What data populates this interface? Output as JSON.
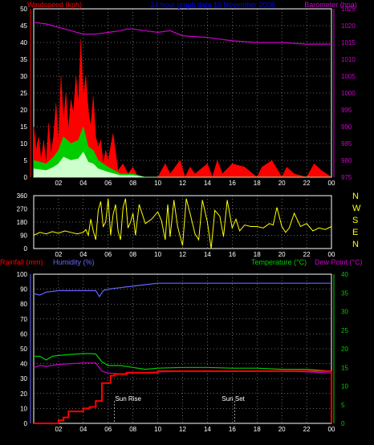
{
  "header": {
    "title": "24 hour graph data  10 November 2008",
    "wind_label": "Windspeed (kph)",
    "baro_label": "Barometer (hpa)"
  },
  "middle": {
    "compass": [
      "N",
      "W",
      "S",
      "E",
      "N"
    ]
  },
  "lower": {
    "rain_label": "Rainfall (mm)",
    "humidity_label": "Humidity (%)",
    "temp_label": "Temperature (°C)",
    "dew_label": "Dew Point (°C)",
    "sunrise_label": "Sun Rise",
    "sunset_label": "Sun Set"
  },
  "colors": {
    "wind": "#ff0000",
    "wind_avg": "#00cc00",
    "wind_low": "#ccffcc",
    "barometer": "#cc00cc",
    "direction": "#ffff00",
    "rainfall": "#ff0000",
    "humidity": "#6666ff",
    "temperature": "#00cc00",
    "dewpoint": "#cc00cc",
    "grid": "#ffffff",
    "title": "#0000ff"
  },
  "chart_data": [
    {
      "type": "area",
      "title": "Windspeed / Barometer",
      "x_ticks": [
        "02",
        "04",
        "06",
        "08",
        "10",
        "12",
        "14",
        "16",
        "18",
        "20",
        "22",
        "00"
      ],
      "x_range_hours": [
        0,
        24
      ],
      "ylim": [
        0,
        50
      ],
      "y_ticks": [
        0,
        5,
        10,
        15,
        20,
        25,
        30,
        35,
        40,
        45,
        50
      ],
      "y2lim": [
        975,
        1025
      ],
      "y2_ticks": [
        975,
        980,
        985,
        990,
        995,
        1000,
        1005,
        1010,
        1015,
        1020,
        1025
      ],
      "series": [
        {
          "name": "Windspeed (kph)",
          "axis": "left",
          "x": [
            0.0,
            0.2,
            0.4,
            0.6,
            0.8,
            1.0,
            1.2,
            1.4,
            1.6,
            1.8,
            2.0,
            2.2,
            2.4,
            2.6,
            2.8,
            3.0,
            3.2,
            3.4,
            3.6,
            3.8,
            4.0,
            4.2,
            4.4,
            4.6,
            4.8,
            5.0,
            5.2,
            5.4,
            5.6,
            5.8,
            6.0,
            6.4,
            6.8,
            7.2,
            7.6,
            8.0,
            8.4,
            9.0,
            10.0,
            10.6,
            11.0,
            11.8,
            12.2,
            12.6,
            13.0,
            14.0,
            14.4,
            14.8,
            15.2,
            16.0,
            17.0,
            18.0,
            18.4,
            19.2,
            20.0,
            20.4,
            21.0,
            22.0,
            22.6,
            23.2,
            24.0
          ],
          "values": [
            15,
            8,
            12,
            5,
            11,
            4,
            16,
            7,
            12,
            22,
            10,
            30,
            17,
            25,
            14,
            23,
            19,
            30,
            22,
            41,
            24,
            30,
            20,
            15,
            24,
            12,
            9,
            11,
            4,
            8,
            5,
            13,
            2,
            4,
            1,
            3,
            0,
            0,
            0,
            4,
            1,
            5,
            0,
            3,
            1,
            4,
            0,
            5,
            1,
            4,
            3,
            0,
            3,
            5,
            0,
            3,
            1,
            0,
            4,
            2,
            0
          ]
        },
        {
          "name": "Wind average",
          "axis": "left",
          "x": [
            0,
            1,
            1.6,
            2,
            2.4,
            3,
            3.6,
            4,
            4.4,
            4.8,
            5.2,
            6,
            7,
            8,
            9,
            24
          ],
          "values": [
            5,
            4,
            6,
            8,
            12,
            10,
            11,
            15,
            9,
            8,
            5,
            3,
            1,
            1,
            0,
            0
          ]
        },
        {
          "name": "Barometer (hpa)",
          "axis": "right",
          "x": [
            0,
            1,
            2,
            3,
            3.5,
            4,
            5,
            6,
            7,
            7.5,
            8,
            9,
            10,
            11,
            12,
            14,
            16,
            18,
            20,
            22,
            24
          ],
          "values": [
            1021,
            1020.5,
            1019.5,
            1018.5,
            1018,
            1017.5,
            1017.5,
            1018,
            1018.5,
            1019,
            1019,
            1018.5,
            1018,
            1018.5,
            1017,
            1016.5,
            1015.5,
            1015,
            1015,
            1014.5,
            1014.5
          ]
        }
      ]
    },
    {
      "type": "line",
      "title": "Wind direction",
      "x_ticks": [
        "02",
        "04",
        "06",
        "08",
        "10",
        "12",
        "14",
        "16",
        "18",
        "20",
        "22",
        "00"
      ],
      "x_range_hours": [
        0,
        24
      ],
      "ylim": [
        0,
        360
      ],
      "y_ticks": [
        0,
        90,
        180,
        270,
        360
      ],
      "series": [
        {
          "name": "Wind direction",
          "x": [
            0.0,
            0.5,
            1.0,
            1.5,
            2.0,
            2.5,
            3.0,
            3.5,
            4.0,
            4.2,
            4.4,
            4.6,
            4.8,
            5.0,
            5.2,
            5.4,
            5.6,
            5.8,
            6.0,
            6.2,
            6.4,
            6.6,
            6.8,
            7.0,
            7.2,
            7.4,
            7.6,
            7.8,
            8.0,
            8.2,
            8.5,
            9.0,
            9.5,
            10.0,
            10.3,
            10.6,
            10.8,
            11.0,
            11.3,
            11.6,
            12.0,
            12.3,
            12.6,
            13.0,
            13.3,
            13.6,
            14.0,
            14.3,
            14.6,
            15.0,
            15.3,
            15.6,
            16.0,
            16.3,
            16.6,
            17.0,
            17.5,
            18.0,
            18.5,
            19.0,
            19.3,
            19.6,
            20.0,
            20.3,
            20.6,
            21.0,
            21.5,
            22.0,
            22.5,
            23.0,
            23.5,
            24.0
          ],
          "values": [
            90,
            110,
            100,
            115,
            105,
            120,
            110,
            100,
            110,
            130,
            90,
            200,
            120,
            60,
            260,
            320,
            150,
            180,
            340,
            90,
            230,
            300,
            120,
            60,
            280,
            340,
            140,
            180,
            240,
            90,
            300,
            170,
            200,
            250,
            190,
            60,
            300,
            80,
            330,
            150,
            20,
            340,
            240,
            100,
            60,
            330,
            180,
            0,
            260,
            220,
            80,
            330,
            140,
            200,
            120,
            160,
            150,
            150,
            140,
            170,
            160,
            280,
            150,
            110,
            140,
            240,
            150,
            170,
            120,
            140,
            130,
            150
          ]
        }
      ]
    },
    {
      "type": "line",
      "title": "Rainfall / Humidity / Temperature / Dew Point",
      "x_ticks": [
        "02",
        "04",
        "06",
        "08",
        "10",
        "12",
        "14",
        "16",
        "18",
        "20",
        "22",
        "00"
      ],
      "x_range_hours": [
        0,
        24
      ],
      "ylim": [
        0,
        100
      ],
      "y_ticks": [
        0,
        10,
        20,
        30,
        40,
        50,
        60,
        70,
        80,
        90,
        100
      ],
      "y2lim": [
        0,
        40
      ],
      "y2_ticks": [
        0,
        5,
        10,
        15,
        20,
        25,
        30,
        35,
        40
      ],
      "annotations": [
        {
          "text": "Sun Rise",
          "x": 6.5
        },
        {
          "text": "Sun Set",
          "x": 16.2
        }
      ],
      "series": [
        {
          "name": "Rainfall (mm)",
          "axis": "left",
          "x": [
            0,
            1.5,
            2.0,
            2.4,
            2.8,
            3.5,
            4.0,
            4.5,
            4.7,
            5.0,
            5.5,
            6.0,
            6.2,
            6.5,
            7.0,
            7.5,
            8.0,
            9.0,
            10.0,
            11.0,
            12.0,
            14.0,
            16.0,
            18.0,
            20.0,
            22.0,
            23.8,
            24.0
          ],
          "values": [
            0,
            0,
            2,
            4,
            8,
            8,
            10,
            11,
            11,
            15,
            27,
            27,
            32,
            33,
            33,
            34,
            34,
            34,
            35,
            35,
            35,
            35,
            35,
            35,
            35,
            35,
            35,
            0
          ]
        },
        {
          "name": "Humidity (%)",
          "axis": "left",
          "x": [
            0,
            0.5,
            1,
            2,
            3,
            4,
            4.5,
            5,
            5.3,
            5.6,
            6,
            7,
            8,
            9,
            10,
            12,
            14,
            16,
            18,
            20,
            22,
            24
          ],
          "values": [
            87,
            86,
            88,
            89,
            89,
            89,
            89,
            89,
            85,
            89,
            90,
            91,
            92,
            93,
            94,
            94,
            94,
            94,
            94,
            94,
            94,
            94
          ]
        },
        {
          "name": "Temperature (°C)",
          "axis": "right",
          "x": [
            0,
            0.5,
            1,
            1.5,
            2,
            3,
            4,
            4.5,
            5,
            5.5,
            6,
            7,
            8,
            9,
            10,
            12,
            14,
            16,
            18,
            20,
            22,
            24
          ],
          "values": [
            18,
            18,
            17,
            18,
            18.2,
            18.5,
            18.7,
            18.7,
            18.6,
            16.5,
            15.5,
            15.5,
            15,
            14.5,
            14.8,
            15,
            15,
            14.8,
            14.8,
            14.5,
            14.5,
            14
          ]
        },
        {
          "name": "Dew Point (°C)",
          "axis": "right",
          "x": [
            0,
            0.5,
            1,
            2,
            3,
            4,
            4.5,
            5,
            5.5,
            6,
            7,
            8,
            9,
            10,
            12,
            14,
            16,
            18,
            20,
            22,
            24
          ],
          "values": [
            15,
            15.5,
            15.3,
            15.8,
            16,
            16.2,
            16.2,
            16.2,
            14,
            13.5,
            13.3,
            13.5,
            13.6,
            13.8,
            14,
            14,
            14,
            14,
            14,
            13.8,
            13.5
          ]
        }
      ]
    }
  ]
}
